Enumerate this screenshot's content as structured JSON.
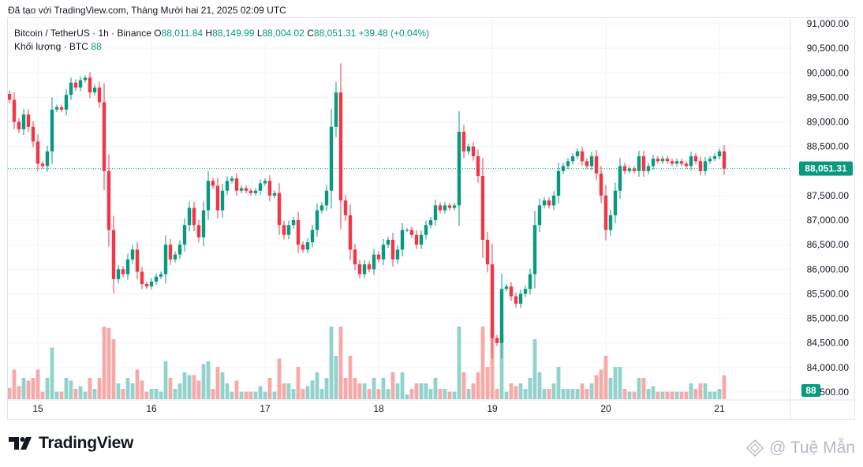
{
  "caption": "Đã tạo với TradingView.com, Tháng Mười hai 21, 2025 02:09 UTC",
  "legend": {
    "symbol": "Bitcoin / TetherUS · 1h · Binance",
    "o_label": "O",
    "o_value": "88,011.84",
    "h_label": "H",
    "h_value": "88,149.99",
    "l_label": "L",
    "l_value": "88,004.02",
    "c_label": "C",
    "c_value": "88,051.31",
    "change": "+39.48 (+0.04%)",
    "volume_label": "Khối lượng · BTC",
    "volume_value": "88"
  },
  "logo_text": "TradingView",
  "watermark_text": "@ Tuệ Mẫn",
  "colors": {
    "up": "#089981",
    "down": "#f23645",
    "vol_up": "#92d2cc",
    "vol_down": "#f7a9a7",
    "grid": "#f0f3fa",
    "text": "#131722"
  },
  "chart_data": {
    "type": "candlestick",
    "ylim": [
      83500,
      91000
    ],
    "y_ticks": [
      "91,000.00",
      "90,500.00",
      "90,000.00",
      "89,500.00",
      "89,000.00",
      "88,500.00",
      "88,000.00",
      "87,500.00",
      "87,000.00",
      "86,500.00",
      "86,000.00",
      "85,500.00",
      "85,000.00",
      "84,500.00",
      "84,000.00",
      "83,500.00"
    ],
    "x_ticks": [
      {
        "label": "15",
        "index": 6
      },
      {
        "label": "16",
        "index": 30
      },
      {
        "label": "17",
        "index": 54
      },
      {
        "label": "18",
        "index": 78
      },
      {
        "label": "19",
        "index": 102
      },
      {
        "label": "20",
        "index": 126
      },
      {
        "label": "21",
        "index": 150
      }
    ],
    "last_price": "88,051.31",
    "last_value": 88051.31,
    "volume_last": "88",
    "closes": [
      89450,
      89000,
      88850,
      89150,
      88900,
      88600,
      88150,
      88100,
      88400,
      89250,
      89300,
      89250,
      89550,
      89800,
      89700,
      89850,
      89900,
      89600,
      89700,
      89400,
      88000,
      86800,
      85800,
      86000,
      85900,
      86200,
      86400,
      85950,
      85700,
      85650,
      85750,
      85850,
      85900,
      86500,
      86200,
      86300,
      86500,
      86900,
      87250,
      86900,
      86650,
      87200,
      87800,
      87700,
      87200,
      87600,
      87800,
      87850,
      87600,
      87650,
      87600,
      87550,
      87600,
      87750,
      87800,
      87500,
      87550,
      86900,
      86700,
      86900,
      87000,
      86500,
      86400,
      86550,
      86800,
      87200,
      87300,
      87600,
      88900,
      89600,
      87400,
      87100,
      86400,
      86100,
      85900,
      86100,
      86000,
      86300,
      86200,
      86500,
      86600,
      86200,
      86400,
      86800,
      86800,
      86700,
      86500,
      86700,
      86900,
      87000,
      87300,
      87200,
      87300,
      87250,
      87300,
      88800,
      88400,
      88500,
      88300,
      87900,
      86600,
      86100,
      84600,
      84500,
      85600,
      85650,
      85450,
      85300,
      85500,
      85600,
      85900,
      86900,
      87300,
      87400,
      87300,
      87500,
      88000,
      88100,
      88200,
      88300,
      88400,
      88200,
      88100,
      88300,
      87950,
      87500,
      86800,
      87100,
      87600,
      88100,
      88000,
      88050,
      88000,
      88300,
      88000,
      88100,
      88250,
      88200,
      88250,
      88200,
      88150,
      88200,
      88150,
      88100,
      88300,
      88200,
      88000,
      88200,
      88250,
      88300,
      88400,
      88050
    ]
  }
}
